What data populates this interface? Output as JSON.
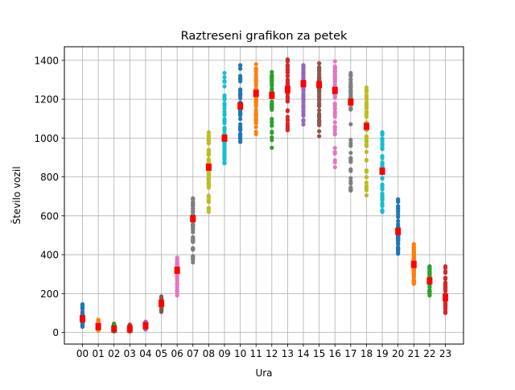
{
  "chart_data": {
    "type": "scatter",
    "title": "Raztreseni grafikon za petek",
    "xlabel": "Ura",
    "ylabel": "Število vozil",
    "categories": [
      "00",
      "01",
      "02",
      "03",
      "04",
      "05",
      "06",
      "07",
      "08",
      "09",
      "10",
      "11",
      "12",
      "13",
      "14",
      "15",
      "16",
      "17",
      "18",
      "19",
      "20",
      "21",
      "22",
      "23"
    ],
    "ylim": [
      -60,
      1470
    ],
    "yticks": [
      0,
      200,
      400,
      600,
      800,
      1000,
      1200,
      1400
    ],
    "grid": true,
    "colors": [
      "#1f77b4",
      "#ff7f0e",
      "#2ca02c",
      "#d62728",
      "#9467bd",
      "#8c564b",
      "#e377c2",
      "#7f7f7f",
      "#bcbd22",
      "#17becf",
      "#1f77b4",
      "#ff7f0e",
      "#2ca02c",
      "#d62728",
      "#9467bd",
      "#8c564b",
      "#e377c2",
      "#7f7f7f",
      "#bcbd22",
      "#17becf",
      "#1f77b4",
      "#ff7f0e",
      "#2ca02c",
      "#d62728"
    ],
    "mean_color": "#ff0000",
    "series": [
      {
        "name": "00",
        "min": 30,
        "max": 145,
        "mean": 70
      },
      {
        "name": "01",
        "min": 10,
        "max": 65,
        "mean": 30
      },
      {
        "name": "02",
        "min": 5,
        "max": 45,
        "mean": 18
      },
      {
        "name": "03",
        "min": 5,
        "max": 40,
        "mean": 18
      },
      {
        "name": "04",
        "min": 15,
        "max": 55,
        "mean": 35
      },
      {
        "name": "05",
        "min": 105,
        "max": 185,
        "mean": 150
      },
      {
        "name": "06",
        "min": 190,
        "max": 385,
        "mean": 320
      },
      {
        "name": "07",
        "min": 360,
        "max": 690,
        "mean": 585
      },
      {
        "name": "08",
        "min": 620,
        "max": 1030,
        "mean": 850
      },
      {
        "name": "09",
        "min": 870,
        "max": 1335,
        "mean": 1000
      },
      {
        "name": "10",
        "min": 980,
        "max": 1375,
        "mean": 1165
      },
      {
        "name": "11",
        "min": 1020,
        "max": 1380,
        "mean": 1230
      },
      {
        "name": "12",
        "min": 950,
        "max": 1340,
        "mean": 1220
      },
      {
        "name": "13",
        "min": 1040,
        "max": 1405,
        "mean": 1250
      },
      {
        "name": "14",
        "min": 1070,
        "max": 1375,
        "mean": 1280
      },
      {
        "name": "15",
        "min": 1010,
        "max": 1385,
        "mean": 1275
      },
      {
        "name": "16",
        "min": 850,
        "max": 1395,
        "mean": 1245
      },
      {
        "name": "17",
        "min": 730,
        "max": 1335,
        "mean": 1185
      },
      {
        "name": "18",
        "min": 705,
        "max": 1260,
        "mean": 1060
      },
      {
        "name": "19",
        "min": 620,
        "max": 1030,
        "mean": 830
      },
      {
        "name": "20",
        "min": 405,
        "max": 685,
        "mean": 520
      },
      {
        "name": "21",
        "min": 250,
        "max": 455,
        "mean": 350
      },
      {
        "name": "22",
        "min": 190,
        "max": 340,
        "mean": 265
      },
      {
        "name": "23",
        "min": 100,
        "max": 340,
        "mean": 180
      }
    ]
  }
}
